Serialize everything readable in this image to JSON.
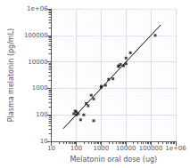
{
  "chart_data": {
    "type": "scatter",
    "xlabel": "Melatonin oral dose (ug)",
    "ylabel": "Plasma melatonin (pg/mL)",
    "log": true,
    "grid": true,
    "xlim": [
      10,
      1000000
    ],
    "ylim": [
      10,
      1000000
    ],
    "xticks": [
      10,
      100,
      1000,
      10000,
      100000,
      {
        "value": 1000000,
        "label": "1e+06"
      }
    ],
    "yticks": [
      10,
      100,
      1000,
      10000,
      100000,
      {
        "value": 1000000,
        "label": "1e+06"
      }
    ],
    "series": [
      {
        "type": "line",
        "color": "#000000",
        "line_style": "solid",
        "x": [
          30,
          250000
        ],
        "values": [
          30,
          250000
        ]
      },
      {
        "type": "scatter",
        "color": "#1a1a1a",
        "marker": "square",
        "x": [
          80,
          90,
          100,
          100,
          120,
          150,
          200,
          250,
          300,
          400,
          500,
          500,
          1000,
          1000,
          1500,
          2000,
          3000,
          5000,
          5000,
          6000,
          8000,
          10000,
          10000,
          15000,
          150000
        ],
        "values": [
          110,
          140,
          100,
          130,
          110,
          65,
          100,
          270,
          220,
          550,
          400,
          60,
          1100,
          1200,
          1300,
          2200,
          2300,
          6700,
          7100,
          8000,
          7100,
          8500,
          14000,
          22000,
          100000
        ]
      }
    ]
  }
}
